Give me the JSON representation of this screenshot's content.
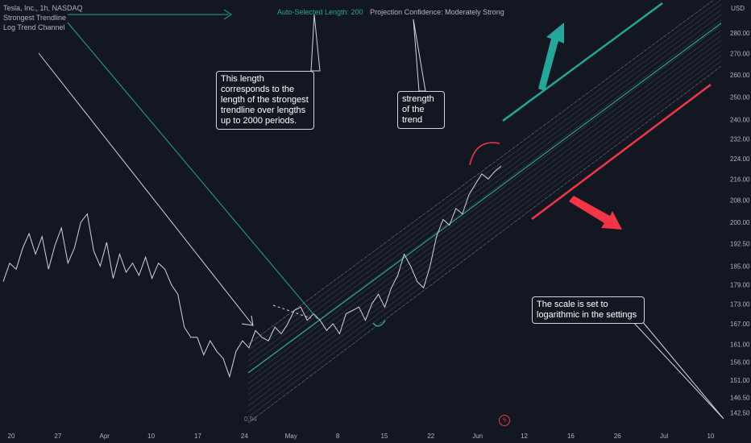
{
  "legend": {
    "symbol": "Tesla, Inc., 1h, NASDAQ",
    "indicator": "Strongest Trendline",
    "channel": "Log Trend Channel"
  },
  "status": {
    "length": "Auto-Selected Length: 200",
    "confidence": "Projection Confidence: Moderately Strong"
  },
  "notes": {
    "length_note": "This length corresponds to the length of the strongest trendline over lengths up to 2000 periods.",
    "strength_note": "strength of the trend",
    "scale_note": "The scale is set to logarithmic in the settings"
  },
  "channel_label": "0.94",
  "axis_unit": "USD",
  "colors": {
    "background": "#131722",
    "price": "#d1d4dc",
    "midline": "#26a69a",
    "upper": "#26a69a",
    "lower": "#f23645",
    "arrow_up": "#26a69a",
    "arrow_down": "#f23645"
  },
  "chart_data": {
    "type": "line",
    "title": "Tesla, Inc., 1h, NASDAQ",
    "scale": "log",
    "ylim": [
      139,
      297
    ],
    "y_ticks": [
      "280.00",
      "270.00",
      "260.00",
      "250.00",
      "240.00",
      "232.00",
      "224.00",
      "216.00",
      "208.00",
      "200.00",
      "192.50",
      "185.00",
      "179.00",
      "173.00",
      "167.00",
      "161.00",
      "156.00",
      "151.00",
      "146.50",
      "142.50"
    ],
    "x_ticks": [
      "20",
      "27",
      "Apr",
      "10",
      "17",
      "24",
      "May",
      "8",
      "15",
      "22",
      "Jun",
      "12",
      "16",
      "26",
      "Jul",
      "10"
    ],
    "series": [
      {
        "values": [
          180,
          186,
          184,
          191,
          196,
          189,
          195,
          184,
          192,
          198,
          186,
          191,
          200,
          203,
          190,
          185,
          193,
          181,
          189,
          183,
          186,
          182,
          188,
          181,
          186,
          184,
          179,
          176,
          166,
          163,
          163,
          158,
          162,
          159,
          157,
          152,
          159,
          162,
          160,
          165,
          163,
          162,
          166,
          164,
          167,
          171,
          172,
          168,
          170,
          168,
          165,
          167,
          164,
          170,
          171,
          172,
          168,
          173,
          176,
          172,
          178,
          182,
          189,
          185,
          180,
          178,
          185,
          195,
          201,
          199,
          205,
          203,
          210,
          214,
          218,
          216,
          219,
          221
        ]
      }
    ],
    "channel": {
      "midline_from": 153,
      "midline_to": 285,
      "upper_from": 161,
      "upper_to": 300,
      "lower_from": 140,
      "lower_to": 264
    }
  }
}
